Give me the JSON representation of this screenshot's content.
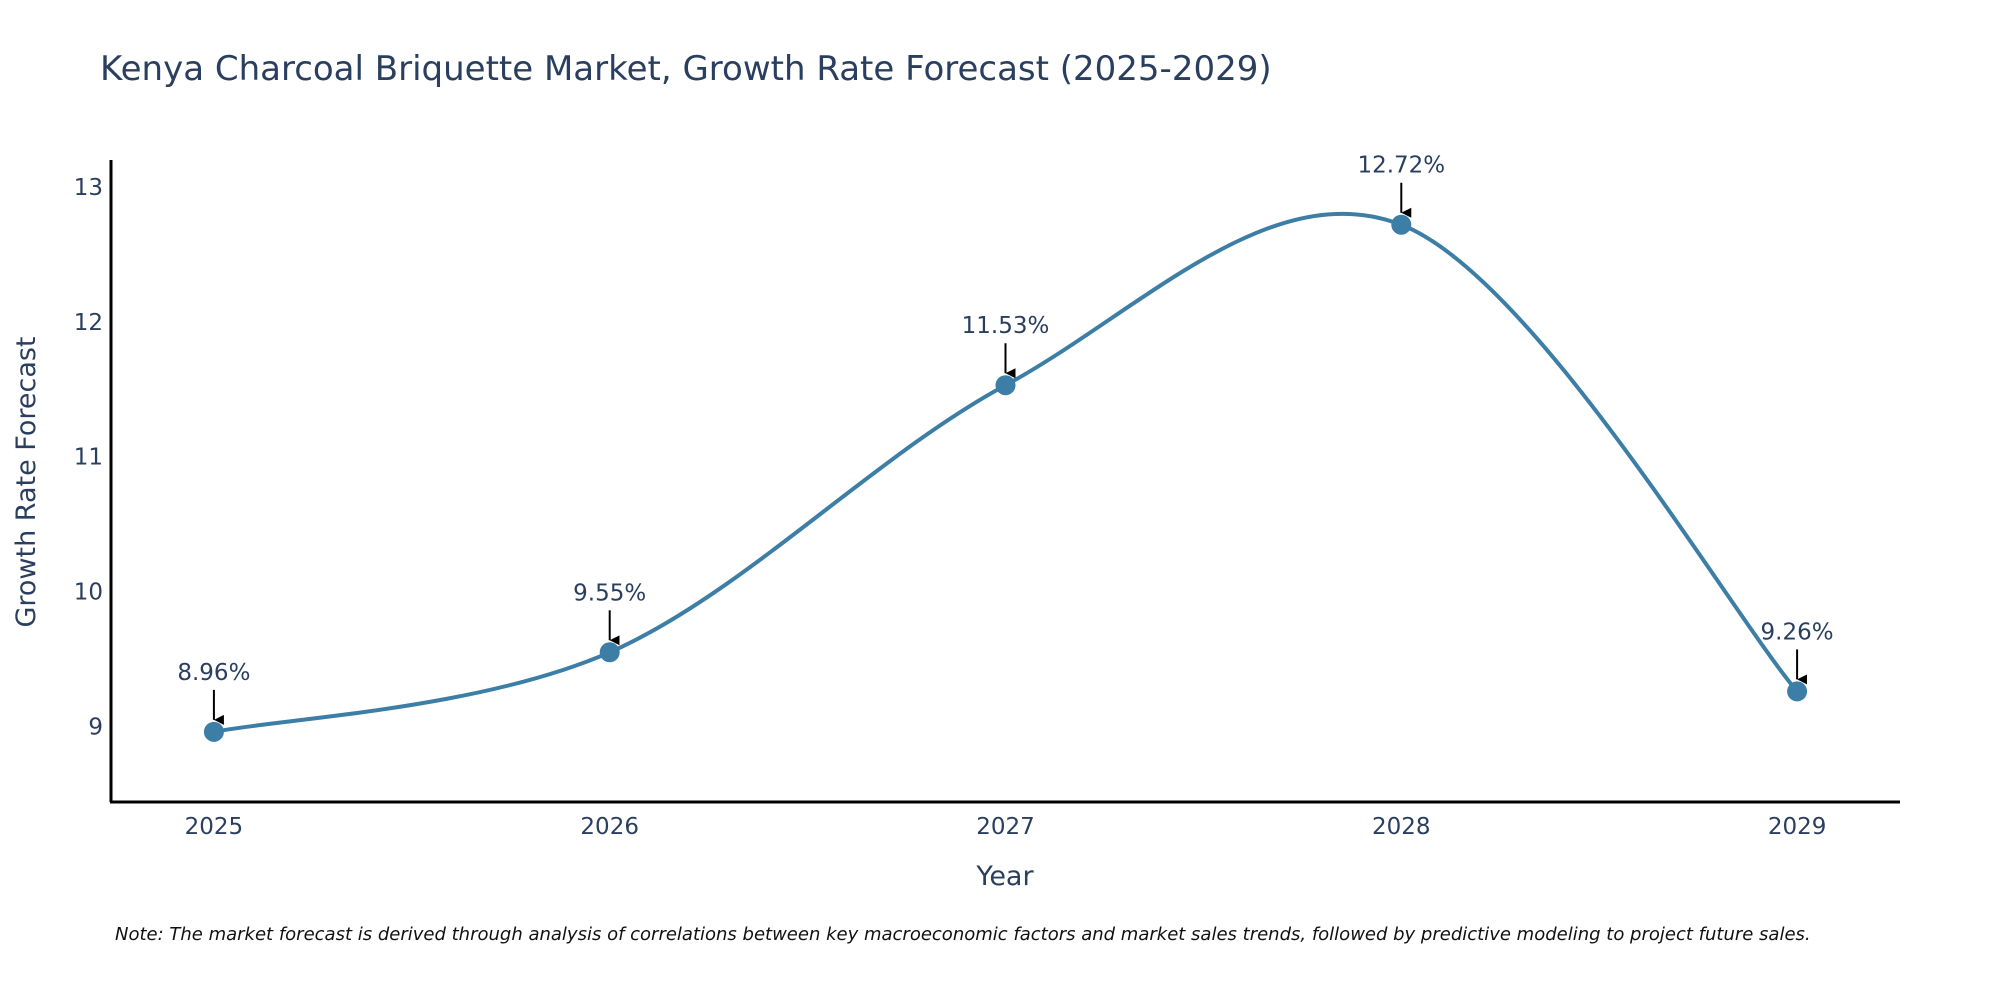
{
  "chart_data": {
    "type": "line",
    "title": "Kenya Charcoal Briquette Market, Growth Rate Forecast (2025-2029)",
    "xlabel": "Year",
    "ylabel": "Growth Rate Forecast",
    "categories": [
      "2025",
      "2026",
      "2027",
      "2028",
      "2029"
    ],
    "values": [
      8.96,
      9.55,
      11.53,
      12.72,
      9.26
    ],
    "data_labels": [
      "8.96%",
      "9.55%",
      "11.53%",
      "12.72%",
      "9.26%"
    ],
    "y_ticks": [
      9,
      10,
      11,
      12,
      13
    ],
    "ylim": [
      8.44,
      13.2
    ],
    "x_range": [
      -0.26,
      4.26
    ],
    "grid": false,
    "line_color": "#3d7ea6",
    "marker_color": "#3d7ea6",
    "line_shape": "spline",
    "note": "Note: The market forecast is derived through analysis of correlations between key macroeconomic factors and market sales trends, followed by predictive modeling to project future sales."
  }
}
